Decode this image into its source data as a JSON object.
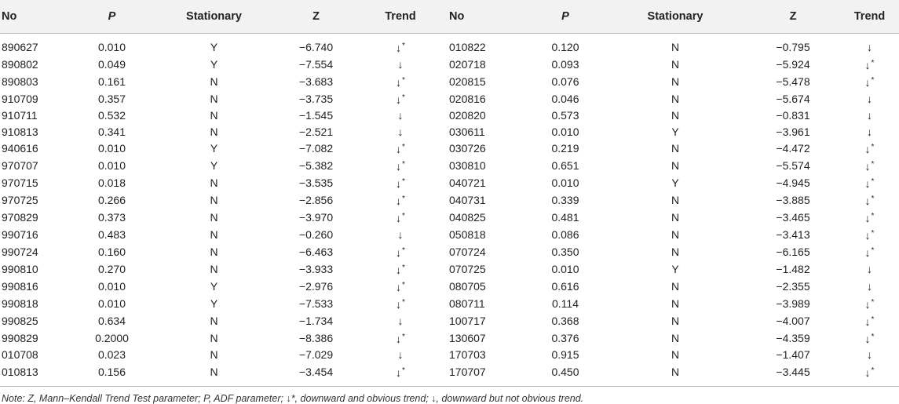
{
  "table": {
    "headers": [
      "No",
      "P",
      "Stationary",
      "Z",
      "Trend",
      "No",
      "P",
      "Stationary",
      "Z",
      "Trend"
    ],
    "rows": [
      [
        {
          "no": "890627",
          "p": "0.010",
          "s": "Y",
          "z": "−6.740",
          "t": "↓",
          "star": "*"
        },
        {
          "no": "010822",
          "p": "0.120",
          "s": "N",
          "z": "−0.795",
          "t": "↓",
          "star": ""
        }
      ],
      [
        {
          "no": "890802",
          "p": "0.049",
          "s": "Y",
          "z": "−7.554",
          "t": "↓",
          "star": ""
        },
        {
          "no": "020718",
          "p": "0.093",
          "s": "N",
          "z": "−5.924",
          "t": "↓",
          "star": "*"
        }
      ],
      [
        {
          "no": "890803",
          "p": "0.161",
          "s": "N",
          "z": "−3.683",
          "t": "↓",
          "star": "*"
        },
        {
          "no": "020815",
          "p": "0.076",
          "s": "N",
          "z": "−5.478",
          "t": "↓",
          "star": "*"
        }
      ],
      [
        {
          "no": "910709",
          "p": "0.357",
          "s": "N",
          "z": "−3.735",
          "t": "↓",
          "star": "*"
        },
        {
          "no": "020816",
          "p": "0.046",
          "s": "N",
          "z": "−5.674",
          "t": "↓",
          "star": ""
        }
      ],
      [
        {
          "no": "910711",
          "p": "0.532",
          "s": "N",
          "z": "−1.545",
          "t": "↓",
          "star": ""
        },
        {
          "no": "020820",
          "p": "0.573",
          "s": "N",
          "z": "−0.831",
          "t": "↓",
          "star": ""
        }
      ],
      [
        {
          "no": "910813",
          "p": "0.341",
          "s": "N",
          "z": "−2.521",
          "t": "↓",
          "star": ""
        },
        {
          "no": "030611",
          "p": "0.010",
          "s": "Y",
          "z": "−3.961",
          "t": "↓",
          "star": ""
        }
      ],
      [
        {
          "no": "940616",
          "p": "0.010",
          "s": "Y",
          "z": "−7.082",
          "t": "↓",
          "star": "*"
        },
        {
          "no": "030726",
          "p": "0.219",
          "s": "N",
          "z": "−4.472",
          "t": "↓",
          "star": "*"
        }
      ],
      [
        {
          "no": "970707",
          "p": "0.010",
          "s": "Y",
          "z": "−5.382",
          "t": "↓",
          "star": "*"
        },
        {
          "no": "030810",
          "p": "0.651",
          "s": "N",
          "z": "−5.574",
          "t": "↓",
          "star": "*"
        }
      ],
      [
        {
          "no": "970715",
          "p": "0.018",
          "s": "N",
          "z": "−3.535",
          "t": "↓",
          "star": "*"
        },
        {
          "no": "040721",
          "p": "0.010",
          "s": "Y",
          "z": "−4.945",
          "t": "↓",
          "star": "*"
        }
      ],
      [
        {
          "no": "970725",
          "p": "0.266",
          "s": "N",
          "z": "−2.856",
          "t": "↓",
          "star": "*"
        },
        {
          "no": "040731",
          "p": "0.339",
          "s": "N",
          "z": "−3.885",
          "t": "↓",
          "star": "*"
        }
      ],
      [
        {
          "no": "970829",
          "p": "0.373",
          "s": "N",
          "z": "−3.970",
          "t": "↓",
          "star": "*"
        },
        {
          "no": "040825",
          "p": "0.481",
          "s": "N",
          "z": "−3.465",
          "t": "↓",
          "star": "*"
        }
      ],
      [
        {
          "no": "990716",
          "p": "0.483",
          "s": "N",
          "z": "−0.260",
          "t": "↓",
          "star": ""
        },
        {
          "no": "050818",
          "p": "0.086",
          "s": "N",
          "z": "−3.413",
          "t": "↓",
          "star": "*"
        }
      ],
      [
        {
          "no": "990724",
          "p": "0.160",
          "s": "N",
          "z": "−6.463",
          "t": "↓",
          "star": "*"
        },
        {
          "no": "070724",
          "p": "0.350",
          "s": "N",
          "z": "−6.165",
          "t": "↓",
          "star": "*"
        }
      ],
      [
        {
          "no": "990810",
          "p": "0.270",
          "s": "N",
          "z": "−3.933",
          "t": "↓",
          "star": "*"
        },
        {
          "no": "070725",
          "p": "0.010",
          "s": "Y",
          "z": "−1.482",
          "t": "↓",
          "star": ""
        }
      ],
      [
        {
          "no": "990816",
          "p": "0.010",
          "s": "Y",
          "z": "−2.976",
          "t": "↓",
          "star": "*"
        },
        {
          "no": "080705",
          "p": "0.616",
          "s": "N",
          "z": "−2.355",
          "t": "↓",
          "star": ""
        }
      ],
      [
        {
          "no": "990818",
          "p": "0.010",
          "s": "Y",
          "z": "−7.533",
          "t": "↓",
          "star": "*"
        },
        {
          "no": "080711",
          "p": "0.114",
          "s": "N",
          "z": "−3.989",
          "t": "↓",
          "star": "*"
        }
      ],
      [
        {
          "no": "990825",
          "p": "0.634",
          "s": "N",
          "z": "−1.734",
          "t": "↓",
          "star": ""
        },
        {
          "no": "100717",
          "p": "0.368",
          "s": "N",
          "z": "−4.007",
          "t": "↓",
          "star": "*"
        }
      ],
      [
        {
          "no": "990829",
          "p": "0.2000",
          "s": "N",
          "z": "−8.386",
          "t": "↓",
          "star": "*"
        },
        {
          "no": "130607",
          "p": "0.376",
          "s": "N",
          "z": "−4.359",
          "t": "↓",
          "star": "*"
        }
      ],
      [
        {
          "no": "010708",
          "p": "0.023",
          "s": "N",
          "z": "−7.029",
          "t": "↓",
          "star": ""
        },
        {
          "no": "170703",
          "p": "0.915",
          "s": "N",
          "z": "−1.407",
          "t": "↓",
          "star": ""
        }
      ],
      [
        {
          "no": "010813",
          "p": "0.156",
          "s": "N",
          "z": "−3.454",
          "t": "↓",
          "star": "*"
        },
        {
          "no": "170707",
          "p": "0.450",
          "s": "N",
          "z": "−3.445",
          "t": "↓",
          "star": "*"
        }
      ]
    ]
  },
  "note": "Note: Z, Mann–Kendall Trend Test parameter; P, ADF parameter; ↓*, downward and obvious trend; ↓, downward but not obvious trend.",
  "colors": {
    "header_bg": "#f2f2f2",
    "rule": "#bbbbbb",
    "text": "#222222"
  }
}
